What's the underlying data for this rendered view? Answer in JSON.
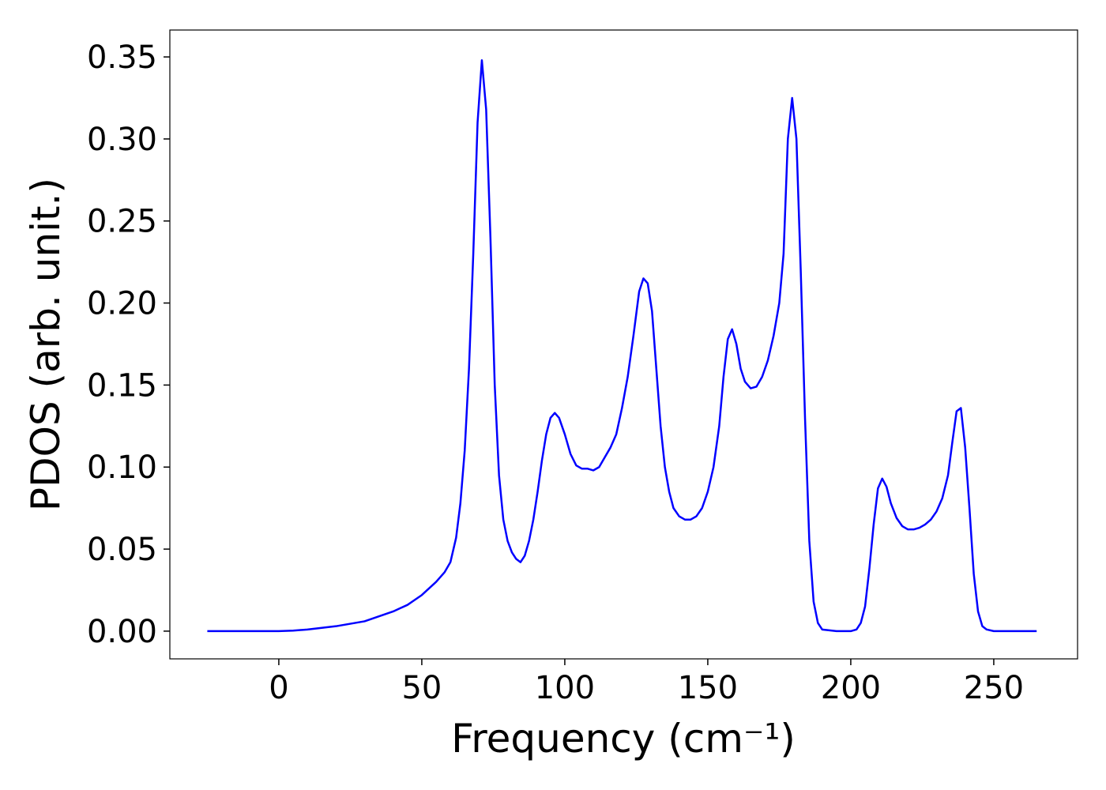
{
  "chart_data": {
    "type": "line",
    "x_label": "Frequency (cm⁻¹)",
    "y_label": "PDOS (arb. unit.)",
    "x": [
      -25,
      0,
      5,
      10,
      20,
      30,
      40,
      45,
      50,
      55,
      58,
      60,
      62,
      63.5,
      65,
      66.5,
      68,
      69.5,
      71,
      72.5,
      74,
      75.5,
      77,
      78.5,
      80,
      81.5,
      83,
      84.5,
      86,
      87.5,
      89,
      90.5,
      92,
      93.5,
      95,
      96.5,
      98,
      100,
      102,
      104,
      106,
      108,
      110,
      112,
      114,
      116,
      118,
      120,
      122,
      124,
      126,
      127.5,
      129,
      130.5,
      132,
      133.5,
      135,
      136.5,
      138,
      140,
      142,
      144,
      146,
      148,
      150,
      152,
      154,
      155.5,
      157,
      158.5,
      160,
      161.5,
      163,
      165,
      167,
      169,
      171,
      173,
      175,
      176.5,
      178,
      179.5,
      181,
      182.5,
      184,
      185.5,
      187,
      188.5,
      190,
      195,
      200,
      202,
      203.5,
      205,
      206.5,
      208,
      209.5,
      211,
      212.5,
      214,
      216,
      218,
      220,
      222,
      224,
      226,
      228,
      230,
      232,
      234,
      235.5,
      237,
      238.5,
      240,
      241.5,
      243,
      244.5,
      246,
      247.5,
      250,
      265
    ],
    "series": [
      {
        "name": "PDOS",
        "color": "#0000ff",
        "values": [
          0,
          0,
          0.0003,
          0.001,
          0.003,
          0.006,
          0.012,
          0.016,
          0.022,
          0.03,
          0.036,
          0.042,
          0.057,
          0.078,
          0.11,
          0.16,
          0.23,
          0.31,
          0.348,
          0.318,
          0.24,
          0.15,
          0.095,
          0.068,
          0.055,
          0.048,
          0.044,
          0.042,
          0.046,
          0.055,
          0.068,
          0.085,
          0.104,
          0.12,
          0.13,
          0.133,
          0.13,
          0.12,
          0.108,
          0.101,
          0.099,
          0.099,
          0.098,
          0.1,
          0.106,
          0.112,
          0.12,
          0.136,
          0.155,
          0.18,
          0.207,
          0.215,
          0.212,
          0.195,
          0.16,
          0.125,
          0.1,
          0.085,
          0.075,
          0.07,
          0.068,
          0.068,
          0.07,
          0.075,
          0.085,
          0.1,
          0.125,
          0.155,
          0.178,
          0.184,
          0.175,
          0.16,
          0.152,
          0.148,
          0.149,
          0.155,
          0.165,
          0.18,
          0.2,
          0.23,
          0.3,
          0.325,
          0.3,
          0.22,
          0.13,
          0.055,
          0.018,
          0.005,
          0.001,
          0,
          0,
          0.001,
          0.005,
          0.015,
          0.038,
          0.065,
          0.087,
          0.093,
          0.088,
          0.078,
          0.069,
          0.064,
          0.062,
          0.062,
          0.063,
          0.065,
          0.068,
          0.073,
          0.081,
          0.095,
          0.115,
          0.134,
          0.136,
          0.112,
          0.075,
          0.035,
          0.012,
          0.003,
          0.001,
          0,
          0
        ]
      }
    ],
    "xlim": [
      -38.1,
      279.3
    ],
    "ylim": [
      -0.0169,
      0.3664
    ],
    "xticks": [
      0,
      50,
      100,
      150,
      200,
      250
    ],
    "yticks": [
      {
        "value": 0,
        "label": "0.00"
      },
      {
        "value": 0.05,
        "label": "0.05"
      },
      {
        "value": 0.1,
        "label": "0.10"
      },
      {
        "value": 0.15,
        "label": "0.15"
      },
      {
        "value": 0.2,
        "label": "0.20"
      },
      {
        "value": 0.25,
        "label": "0.25"
      },
      {
        "value": 0.3,
        "label": "0.30"
      },
      {
        "value": 0.35,
        "label": "0.35"
      }
    ]
  }
}
